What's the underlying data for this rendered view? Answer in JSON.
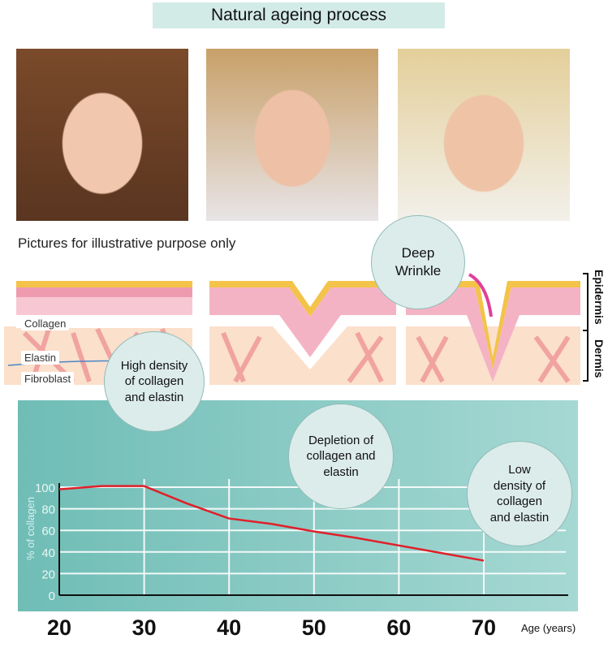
{
  "title": "Natural ageing process",
  "photos": [
    {
      "label": "young woman portrait"
    },
    {
      "label": "middle-aged woman portrait"
    },
    {
      "label": "older woman portrait"
    }
  ],
  "caption": "Pictures for illustrative purpose only",
  "diagram": {
    "labels": {
      "collagen": "Collagen",
      "elastin": "Elastin",
      "fibroblast": "Fibroblast"
    },
    "layers": {
      "epidermis": "Epidermis",
      "dermis": "Dermis"
    },
    "bubbles": {
      "deep_wrinkle": "Deep Wrinkle",
      "high": "High density of collagen and elastin",
      "depletion": "Depletion of collagen and elastin",
      "low": "Low density of collagen and elastin"
    }
  },
  "colors": {
    "panel": "#7cc4be",
    "line": "#e0202a",
    "bubble": "#dcecea"
  },
  "chart_data": {
    "type": "line",
    "title": "",
    "xlabel": "Age (years)",
    "ylabel": "% of collagen",
    "x": [
      20,
      25,
      30,
      35,
      40,
      45,
      50,
      55,
      60,
      65,
      70
    ],
    "series": [
      {
        "name": "collagen",
        "values": [
          98,
          101,
          101,
          85,
          71,
          66,
          59,
          53,
          46,
          39,
          32
        ]
      }
    ],
    "xticks": [
      "20",
      "30",
      "40",
      "50",
      "60",
      "70"
    ],
    "yticks": [
      "0",
      "20",
      "40",
      "60",
      "80",
      "100"
    ],
    "xlim": [
      20,
      70
    ],
    "ylim": [
      0,
      100
    ],
    "grid": true
  }
}
